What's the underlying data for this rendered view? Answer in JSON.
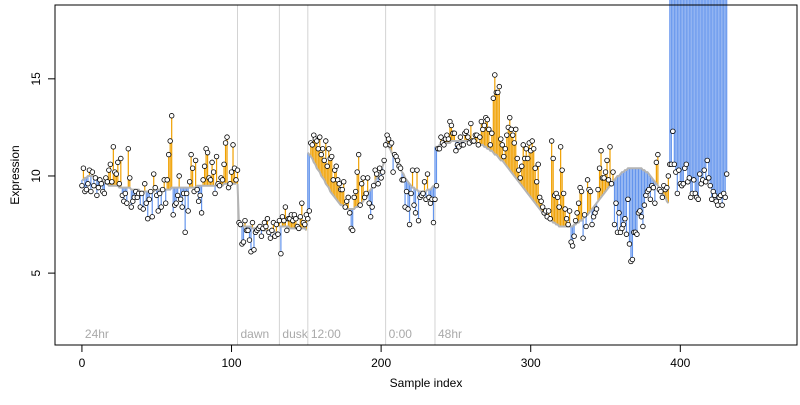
{
  "chart_data": {
    "type": "scatter",
    "title": "",
    "xlabel": "Sample index",
    "ylabel": "Expression",
    "xlim": [
      -18,
      478
    ],
    "ylim": [
      1.3,
      18.8
    ],
    "x_ticks": [
      0,
      100,
      200,
      300,
      400
    ],
    "y_ticks": [
      5,
      10,
      15
    ],
    "grid": false,
    "segments": [
      {
        "x": 104,
        "label": "dawn"
      },
      {
        "x": 132,
        "label": "dusk"
      },
      {
        "x": 151,
        "label": "12:00"
      },
      {
        "x": 203,
        "label": "0:00"
      },
      {
        "x": 236,
        "label": "48hr"
      }
    ],
    "first_segment_label": "24hr",
    "colors": {
      "above_fit": "#f0a000",
      "below_fit": "#6495ed",
      "fit_line": "#b4b4b4",
      "points": "#000000",
      "boundary": "#d3d3d3"
    },
    "series": [
      {
        "fit": [
          9.8,
          9.8,
          9.9,
          9.9,
          10,
          10,
          10,
          10,
          10,
          10,
          9.9,
          9.9,
          9.8,
          9.8,
          9.7,
          9.7,
          9.6,
          9.6,
          9.5,
          9.5,
          9.5,
          9.5,
          9.5,
          9.5,
          9.5,
          9.4,
          9.4,
          9.4,
          9.4,
          9.4,
          9.4,
          9.4,
          9.4,
          9.3,
          9.3,
          9.3,
          9.3,
          9.3,
          9.3,
          9.2,
          9.2,
          9.2,
          9.2,
          9.2,
          9.2,
          9.2,
          9.2,
          9.2,
          9.2,
          9.3,
          9.3,
          9.3,
          9.3,
          9.3,
          9.3,
          9.3,
          9.3,
          9.3,
          9.3,
          9.3,
          9.4,
          9.4,
          9.4,
          9.4,
          9.4,
          9.4,
          9.4,
          9.4,
          9.4,
          9.4,
          9.4,
          9.4,
          9.4,
          9.4,
          9.4,
          9.4,
          9.4,
          9.5,
          9.5,
          9.5,
          9.5,
          9.5,
          9.5,
          9.5,
          9.5,
          9.5,
          9.5,
          9.5,
          9.5,
          9.5,
          9.5,
          9.5,
          9.5,
          9.5,
          9.5,
          9.6,
          9.6,
          9.6,
          9.6,
          9.6,
          9.6,
          9.6,
          9.6,
          9.6,
          9.6,
          7.5,
          7.5,
          7.5,
          7.4,
          7.4,
          7.4,
          7.4,
          7.4,
          7.4,
          7.3,
          7.3,
          7.3,
          7.3,
          7.3,
          7.3,
          7.3,
          7.2,
          7.2,
          7.2,
          7.2,
          7.2,
          7.2,
          7.2,
          7.1,
          7.1,
          7.1,
          7.1,
          7.4,
          7.4,
          7.4,
          7.4,
          7.4,
          7.4,
          7.4,
          7.3,
          7.3,
          7.3,
          7.3,
          7.3,
          7.3,
          7.3,
          7.3,
          7.3,
          7.3,
          7.3,
          7.2,
          11.2,
          11.1,
          11,
          10.9,
          10.7,
          10.6,
          10.4,
          10.3,
          10.2,
          10,
          9.9,
          9.8,
          9.6,
          9.5,
          9.4,
          9.2,
          9.1,
          9,
          8.9,
          8.8,
          8.7,
          8.6,
          8.5,
          8.5,
          8.4,
          8.4,
          8.3,
          8.3,
          8.3,
          8.3,
          8.3,
          8.3,
          8.4,
          8.4,
          8.5,
          8.5,
          8.6,
          8.7,
          8.8,
          8.9,
          9,
          9.2,
          9.3,
          9.4,
          9.6,
          9.7,
          9.9,
          10,
          10.2,
          10.3,
          10.5,
          10.7,
          11.8,
          11.7,
          11.5,
          11.4,
          11.2,
          11.1,
          10.9,
          10.8,
          10.6,
          10.5,
          10.3,
          10.2,
          10.1,
          9.9,
          9.8,
          9.7,
          9.6,
          9.5,
          9.4,
          9.4,
          9.3,
          9.3,
          9.2,
          9.2,
          9.2,
          9.2,
          9.2,
          9.2,
          9.3,
          9.3,
          9.3,
          9.4,
          9.5,
          11.5,
          11.5,
          11.5,
          11.6,
          11.6,
          11.6,
          11.7,
          11.7,
          11.7,
          11.7,
          11.7,
          11.8,
          11.8,
          11.8,
          11.8,
          11.8,
          11.8,
          11.8,
          11.8,
          11.8,
          11.8,
          11.8,
          11.8,
          11.8,
          11.8,
          11.8,
          11.7,
          11.7,
          11.7,
          11.7,
          11.6,
          11.6,
          11.6,
          11.5,
          11.5,
          11.4,
          11.4,
          11.3,
          11.3,
          11.2,
          11.1,
          11.1,
          11,
          10.9,
          10.8,
          10.8,
          10.7,
          10.6,
          10.5,
          10.4,
          10.3,
          10.2,
          10.1,
          10,
          9.9,
          9.8,
          9.7,
          9.6,
          9.5,
          9.4,
          9.3,
          9.2,
          9.1,
          9,
          8.9,
          8.8,
          8.7,
          8.6,
          8.5,
          8.4,
          8.3,
          8.2,
          8.1,
          8,
          8,
          7.9,
          7.8,
          7.7,
          7.7,
          7.6,
          7.6,
          7.5,
          7.5,
          7.4,
          7.4,
          7.4,
          7.4,
          7.4,
          7.4,
          7.4,
          7.4,
          7.4,
          7.4,
          7.5,
          7.5,
          7.6,
          7.6,
          7.7,
          7.7,
          7.8,
          7.9,
          8,
          8,
          8.1,
          8.2,
          8.3,
          8.4,
          8.5,
          8.6,
          8.7,
          8.8,
          8.9,
          9,
          9.1,
          9.2,
          9.3,
          9.4,
          9.5,
          9.6,
          9.7,
          9.8,
          9.9,
          10,
          10,
          10.1,
          10.2,
          10.2,
          10.3,
          10.3,
          10.4,
          10.4,
          10.4,
          10.4,
          10.4,
          10.4,
          10.4,
          10.4,
          10.4,
          10.4,
          10.3,
          10.3,
          10.2,
          10.2,
          10.1,
          10,
          9.9,
          9.8,
          9.7,
          9.6,
          9.5,
          9.4,
          9.3,
          9.1,
          9,
          8.9,
          8.7,
          8.6
        ],
        "values": [
          9.5,
          10.4,
          9.2,
          9.3,
          9.6,
          10.3,
          9.2,
          10.2,
          9.5,
          9.9,
          9,
          9.4,
          9.8,
          9.6,
          9.2,
          9.1,
          9.9,
          9.7,
          10.3,
          10.6,
          9.7,
          11.5,
          10.2,
          10.1,
          10.7,
          9.6,
          10.9,
          9,
          8.7,
          9.1,
          8.6,
          11.4,
          9.9,
          8.4,
          8.7,
          8.9,
          9.2,
          8.9,
          9.1,
          8.4,
          9.1,
          8.3,
          9.6,
          8.6,
          7.8,
          8.8,
          9.2,
          7.9,
          10.1,
          9.4,
          9,
          8.2,
          9.1,
          8.4,
          9.3,
          9.8,
          8.6,
          9.8,
          11.1,
          11.8,
          13.1,
          8,
          8.5,
          8.6,
          9,
          10,
          8.8,
          8.4,
          9.1,
          7.1,
          9.1,
          8.2,
          9.7,
          11.1,
          10.4,
          9.2,
          10.8,
          9.3,
          8.7,
          9,
          8.1,
          9.8,
          10.5,
          11.4,
          11.2,
          9.9,
          9.8,
          10.7,
          10.2,
          9.1,
          11,
          9.6,
          9.5,
          9.9,
          9.8,
          10.6,
          11.7,
          12,
          9.4,
          9.6,
          10.2,
          11.6,
          10.4,
          9.8,
          10.3,
          7.6,
          7.5,
          6.5,
          6.6,
          7.7,
          7.2,
          7.2,
          6.7,
          6.1,
          7.6,
          6.2,
          7.1,
          7.2,
          7.3,
          7.4,
          6.9,
          7.3,
          7.6,
          7.4,
          7.8,
          7.1,
          6.8,
          7.2,
          7.6,
          6.9,
          7.5,
          7,
          7.7,
          6,
          7.9,
          7.7,
          8.4,
          7.2,
          7.8,
          7.8,
          8,
          7.7,
          8,
          7.8,
          7.4,
          7.3,
          7.9,
          8.6,
          7.6,
          7.5,
          8,
          7.8,
          8.2,
          11.7,
          11.6,
          12.1,
          11.9,
          11.8,
          11.4,
          12,
          11.1,
          11.4,
          10.8,
          11.8,
          10.5,
          11.4,
          10.9,
          11,
          9.8,
          10.3,
          10.5,
          9.8,
          9.6,
          9.3,
          9.3,
          9.7,
          8.4,
          8.7,
          8.9,
          8.1,
          7.3,
          7.2,
          8.9,
          9.2,
          10.2,
          11.1,
          8.5,
          9.6,
          9.9,
          8.9,
          9.1,
          9.9,
          8.6,
          7.9,
          8.4,
          9.5,
          10.3,
          10.1,
          9.6,
          10.4,
          9.9,
          10.2,
          10.8,
          11.6,
          12.1,
          11.9,
          11.6,
          11.7,
          10.2,
          11.1,
          11,
          10.8,
          10.5,
          10.4,
          9.8,
          9.8,
          8.4,
          9.2,
          8.3,
          7.5,
          9.1,
          10.3,
          8.5,
          8.1,
          10.3,
          7.7,
          8.9,
          9,
          9.1,
          9.7,
          8.8,
          10.1,
          8.9,
          8.6,
          8.8,
          7.6,
          8.8,
          9.5,
          11.4,
          11.4,
          12,
          11.7,
          11.6,
          11.9,
          12.1,
          11.9,
          12.8,
          12.6,
          12.2,
          12.2,
          11.3,
          11.6,
          11.5,
          12,
          11.6,
          11.6,
          12.2,
          12.3,
          12,
          11.7,
          12.7,
          11.8,
          11.8,
          12.1,
          12.1,
          11.6,
          12,
          12.8,
          12.4,
          12.6,
          13,
          12.9,
          12.4,
          11.6,
          12.2,
          14,
          15.2,
          14.3,
          14.3,
          14.6,
          11.9,
          11.6,
          11,
          11.4,
          12.1,
          12.5,
          13,
          12.4,
          12.1,
          11.7,
          12.4,
          10.9,
          10.3,
          9.9,
          10.5,
          11.6,
          10.9,
          11.4,
          10.9,
          11.7,
          11.3,
          11.8,
          11.4,
          10.4,
          9.7,
          10.6,
          8.9,
          8.7,
          8.4,
          8.1,
          8.2,
          7.9,
          8.2,
          7.8,
          11.8,
          10.9,
          9,
          9.1,
          8.9,
          8.4,
          11.5,
          10.3,
          9.1,
          8.3,
          7.8,
          7.5,
          8.2,
          6.6,
          6.4,
          6.9,
          7.7,
          8.1,
          8.6,
          9.4,
          9.2,
          6.8,
          8,
          7.4,
          9.8,
          9.3,
          9.2,
          7.5,
          7.9,
          8.1,
          8.3,
          9.3,
          10.4,
          11.3,
          9.9,
          9.9,
          10.2,
          10.8,
          9.8,
          11.5,
          9.6,
          10.2,
          7.5,
          8.6,
          7.1,
          8.1,
          7.1,
          7.3,
          7.5,
          7.8,
          7,
          8.8,
          6.5,
          5.6,
          5.7,
          7.1,
          7.1,
          7,
          8.1,
          8.2,
          7.9,
          7.4,
          8.5,
          9,
          9.2,
          9.3,
          8.8,
          9.5,
          9.4,
          8.6,
          10.7,
          11.1,
          9.3,
          9.2,
          8.9,
          9.5,
          9.3,
          9.4,
          10,
          10.6,
          10.6,
          12.3,
          10.6,
          10.2,
          9.1,
          10.3,
          9.6,
          9.5,
          9.6,
          10.4,
          10.6,
          9.7,
          9.9,
          8.9,
          9.1,
          9.8,
          9.1,
          8.9,
          8.8,
          10.1,
          9.6,
          9.8,
          10.3,
          9.7,
          10.8,
          9.9,
          9.5,
          8.8,
          9.2,
          9,
          8.7,
          8.5,
          8.9,
          9,
          8.5,
          9.1,
          8.9,
          10.1
        ]
      }
    ]
  }
}
